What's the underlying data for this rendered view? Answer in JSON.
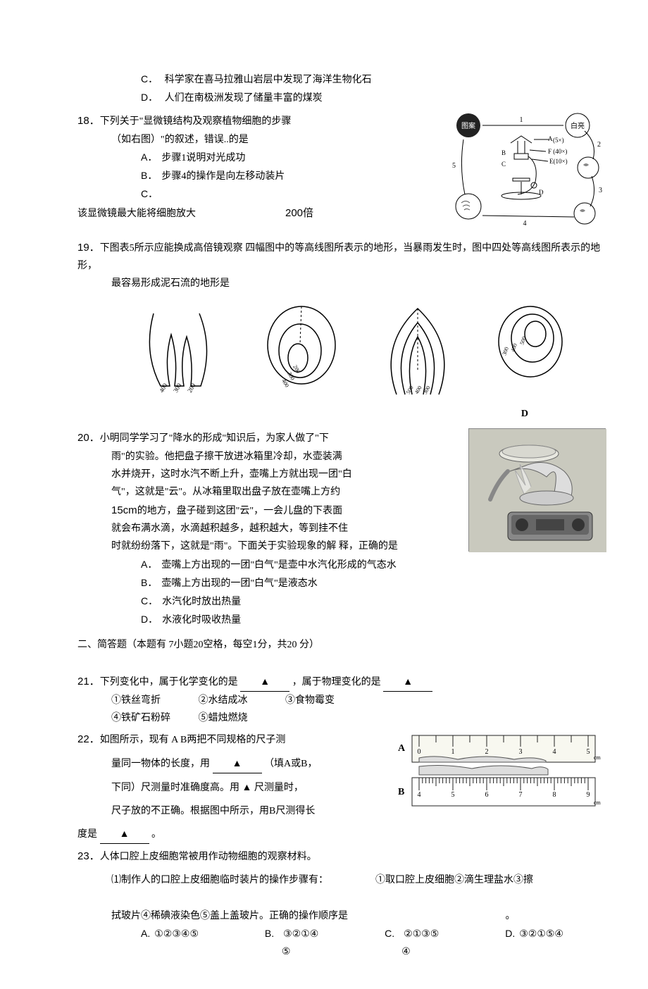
{
  "q17": {
    "C": "科学家在喜马拉雅山岩层中发现了海洋生物化石",
    "D": "人们在南极洲发现了储量丰富的煤炭"
  },
  "q18": {
    "stem1": "下列关于\"显微镜结构及观察植物细胞的步骤",
    "stem2": "（如右图）\"的叙述，错误..的是",
    "A": "步骤1说明对光成功",
    "B": "步骤4的操作是向左移动装片",
    "C_prefix": "",
    "C_line": "该显微镜最大能将细胞放大",
    "C_value": "200倍",
    "D_line": "下图表5所示应能换成高倍镜观察",
    "fig": {
      "labels": [
        "图案",
        "白亮",
        "(5×)",
        "F (40×)",
        "E(10×)"
      ],
      "nums": [
        "1",
        "2",
        "3",
        "4",
        "5"
      ],
      "letters": [
        "A",
        "B",
        "C",
        "D"
      ]
    }
  },
  "q19": {
    "stem1": "四幅图中的等高线图所表示的地形，当暴雨发生时，图中四处等高线图所表示的地形，",
    "stem2": "最容易形成泥石流的地形是",
    "label_D": "D",
    "contours": {
      "A": [
        "400",
        "300",
        "200"
      ],
      "B": [
        "200",
        "300",
        "400"
      ],
      "C": [
        "500",
        "400",
        "300"
      ],
      "D": [
        "300",
        "400",
        "500"
      ]
    }
  },
  "q20": {
    "lines": [
      "小明同学学习了\"降水的形成\"知识后，为家人做了\"下",
      "雨\"的实验。他把盘子擦干放进冰箱里冷却，水壶装满",
      "水并烧开，这时水汽不断上升，壶嘴上方就出现一团\"白",
      "气\"，这就是\"云\"。从冰箱里取出盘子放在壶嘴上方约",
      "15cm的地方，盘子碰到这团\"云\"，一会儿盘的下表面",
      "就会布满水滴，水滴越积越多，越积越大，等到挂不住",
      "时就纷纷落下，这就是\"雨\"。下面关于实验现象的解 释，正确的是"
    ],
    "A": "壶嘴上方出现的一团\"白气\"是壶中水汽化形成的气态水",
    "B": "壶嘴上方出现的一团\"白气\"是液态水",
    "C": "水汽化时放出热量",
    "D": "水液化时吸收热量"
  },
  "section2": "二、简答题（本题有 7小题20空格，每空1分，共20 分）",
  "q21": {
    "stem": "下列变化中，属于化学变化的是",
    "mid": "，属于物理变化的是",
    "items1": [
      "①铁丝弯折",
      "②水结成冰",
      "③食物霉变"
    ],
    "items2": [
      "④铁矿石粉碎",
      "⑤蜡烛燃烧"
    ]
  },
  "q22": {
    "stem": "如图所示，现有 A B两把不同规格的尺子测",
    "line2_a": "量同一物体的长度，用",
    "line2_b": "（填A或B，",
    "line3": "下同）尺测量时准确度高。用 ▲ 尺测量时，",
    "line4": "尺子放的不正确。根据图中所示，用B尺测得长",
    "line5_a": "度是",
    "line5_b": "。",
    "ruler": {
      "A": {
        "start": 0,
        "end": 5,
        "unit": "cm",
        "ticks": [
          0,
          1,
          2,
          3,
          4,
          5
        ]
      },
      "B": {
        "start": 4,
        "end": 9,
        "unit": "cm",
        "ticks": [
          4,
          5,
          6,
          7,
          8,
          9
        ]
      }
    }
  },
  "q23": {
    "stem": "人体口腔上皮细胞常被用作动物细胞的观察材料。",
    "sub1_a": "⑴制作人的口腔上皮细胞临时装片的操作步骤有：",
    "sub1_b": "①取口腔上皮细胞②滴生理盐水③擦",
    "sub2": "拭玻片④稀碘液染色⑤盖上盖玻片。正确的操作顺序是",
    "options": {
      "A": "①②③④⑤",
      "B_top": "③②①④",
      "B_bot": "⑤",
      "C_top": "②①③⑤",
      "C_bot": "④",
      "D": "③②①⑤④"
    }
  },
  "tri": "▲"
}
